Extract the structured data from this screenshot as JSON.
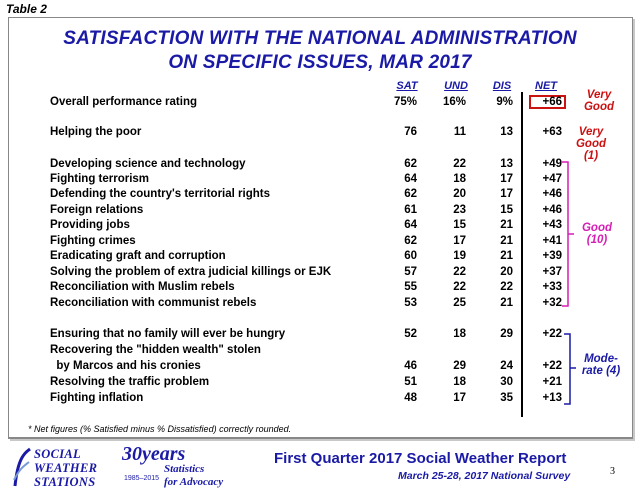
{
  "table_label": "Table 2",
  "title_line1": "SATISFACTION WITH THE NATIONAL ADMINISTRATION",
  "title_line2": "ON SPECIFIC ISSUES, MAR 2017",
  "columns": {
    "sat": "SAT",
    "und": "UND",
    "dis": "DIS",
    "net": "NET"
  },
  "rows": [
    {
      "label": "Overall performance rating",
      "sat": "75%",
      "und": "16%",
      "dis": "9%",
      "net": "+66"
    },
    {
      "label": "Helping the poor",
      "sat": "76",
      "und": "11",
      "dis": "13",
      "net": "+63"
    },
    {
      "label": "Developing science and technology",
      "sat": "62",
      "und": "22",
      "dis": "13",
      "net": "+49"
    },
    {
      "label": "Fighting terrorism",
      "sat": "64",
      "und": "18",
      "dis": "17",
      "net": "+47"
    },
    {
      "label": "Defending the country's territorial rights",
      "sat": "62",
      "und": "20",
      "dis": "17",
      "net": "+46"
    },
    {
      "label": "Foreign relations",
      "sat": "61",
      "und": "23",
      "dis": "15",
      "net": "+46"
    },
    {
      "label": "Providing jobs",
      "sat": "64",
      "und": "15",
      "dis": "21",
      "net": "+43"
    },
    {
      "label": "Fighting crimes",
      "sat": "62",
      "und": "17",
      "dis": "21",
      "net": "+41"
    },
    {
      "label": "Eradicating graft and corruption",
      "sat": "60",
      "und": "19",
      "dis": "21",
      "net": "+39"
    },
    {
      "label": "Solving the problem of extra judicial killings or EJK",
      "sat": "57",
      "und": "22",
      "dis": "20",
      "net": "+37"
    },
    {
      "label": "Reconciliation with Muslim rebels",
      "sat": "55",
      "und": "22",
      "dis": "22",
      "net": "+33"
    },
    {
      "label": "Reconciliation with communist rebels",
      "sat": "53",
      "und": "25",
      "dis": "21",
      "net": "+32"
    },
    {
      "label": "Ensuring that no family will ever be hungry",
      "sat": "52",
      "und": "18",
      "dis": "29",
      "net": "+22"
    },
    {
      "label": "Recovering the \"hidden wealth\" stolen",
      "sat": "",
      "und": "",
      "dis": "",
      "net": ""
    },
    {
      "label": "  by Marcos and his cronies",
      "sat": "46",
      "und": "29",
      "dis": "24",
      "net": "+22"
    },
    {
      "label": "Resolving the traffic problem",
      "sat": "51",
      "und": "18",
      "dis": "30",
      "net": "+21"
    },
    {
      "label": "Fighting inflation",
      "sat": "48",
      "und": "17",
      "dis": "35",
      "net": "+13"
    }
  ],
  "bands": {
    "very_good_1_line1": "Very",
    "very_good_1_line2": "Good",
    "very_good_2_line1": "Very",
    "very_good_2_line2": "Good",
    "very_good_2_line3": "(1)",
    "good_line1": "Good",
    "good_line2": "(10)",
    "moderate_line1": "Mode-",
    "moderate_line2": "rate (4)"
  },
  "footnote": "* Net figures (% Satisfied minus % Dissatisfied) correctly rounded.",
  "footer": {
    "org_line1": "SOCIAL",
    "org_line2": "WEATHER",
    "org_line3": "STATIONS",
    "years": "30years",
    "years_range": "1985–2015",
    "tagline1": "Statistics",
    "tagline2": "for Advocacy",
    "report_title": "First Quarter 2017 Social Weather Report",
    "report_subtitle": "March 25-28, 2017 National Survey",
    "page_number": "3"
  },
  "colors": {
    "title": "#1a1aa6",
    "very_good": "#cc1111",
    "good": "#d61fb5",
    "moderate": "#1a1aa6"
  }
}
